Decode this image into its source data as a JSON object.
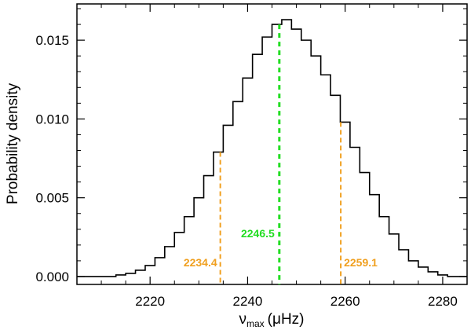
{
  "chart_data": {
    "type": "histogram",
    "title": "",
    "xlabel": "max",
    "xlabel_symbol": "ν",
    "xlabel_unit": "(μHz)",
    "ylabel": "Probability density",
    "xlim": [
      2205,
      2285
    ],
    "ylim": [
      -0.0005,
      0.0173
    ],
    "xticks": [
      2220,
      2240,
      2260,
      2280
    ],
    "xtick_labels": [
      "2220",
      "2240",
      "2260",
      "2280"
    ],
    "yticks": [
      0.0,
      0.005,
      0.01,
      0.015
    ],
    "ytick_labels": [
      "0.000",
      "0.005",
      "0.010",
      "0.015"
    ],
    "grid": false,
    "x": [
      2205,
      2207,
      2209,
      2211,
      2213,
      2215,
      2217,
      2219,
      2221,
      2223,
      2225,
      2227,
      2229,
      2231,
      2233,
      2235,
      2237,
      2239,
      2241,
      2243,
      2245,
      2247,
      2249,
      2251,
      2253,
      2255,
      2257,
      2259,
      2261,
      2263,
      2265,
      2267,
      2269,
      2271,
      2273,
      2275,
      2277,
      2279,
      2281,
      2283,
      2285
    ],
    "y": [
      0.0,
      0.0,
      0.0,
      0.0,
      0.0001,
      0.0002,
      0.0004,
      0.0007,
      0.0012,
      0.0019,
      0.0028,
      0.0038,
      0.005,
      0.0064,
      0.0079,
      0.0096,
      0.0111,
      0.0126,
      0.0141,
      0.0152,
      0.016,
      0.0163,
      0.0157,
      0.015,
      0.014,
      0.0128,
      0.0115,
      0.0098,
      0.0082,
      0.0066,
      0.0052,
      0.0038,
      0.0027,
      0.0017,
      0.001,
      0.0006,
      0.0003,
      0.0001,
      0.0,
      0.0,
      0.0
    ],
    "markers": [
      {
        "x": 2246.5,
        "label": "2246.5",
        "color": "#22dd22"
      },
      {
        "x": 2234.4,
        "label": "2234.4",
        "color": "#f0a020"
      },
      {
        "x": 2259.1,
        "label": "2259.1",
        "color": "#f0a020"
      }
    ]
  }
}
